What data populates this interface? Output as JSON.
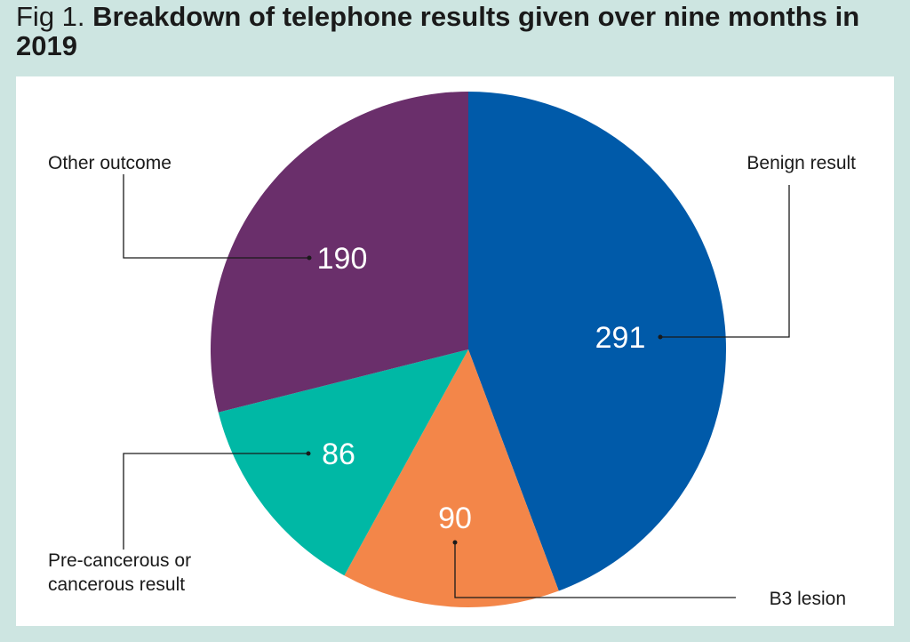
{
  "figure": {
    "label": "Fig 1.",
    "title": "Breakdown of telephone results given over nine months in 2019"
  },
  "colors": {
    "background": "#cde5e1",
    "panel": "#ffffff",
    "leader_line": "#1a1a1a"
  },
  "chart_data": {
    "type": "pie",
    "title": "Breakdown of telephone results given over nine months in 2019",
    "start_angle_deg": 0,
    "direction": "clockwise",
    "slices": [
      {
        "label": "Benign result",
        "value": 291,
        "color": "#005aa9"
      },
      {
        "label": "B3 lesion",
        "value": 90,
        "color": "#f38649"
      },
      {
        "label": "Pre-cancerous or cancerous result",
        "value": 86,
        "color": "#00b8a5"
      },
      {
        "label": "Other outcome",
        "value": 190,
        "color": "#6a2f6b"
      }
    ]
  },
  "labels": {
    "benign": "Benign result",
    "b3": "B3 lesion",
    "precancer_line1": "Pre-cancerous or",
    "precancer_line2": "cancerous result",
    "other": "Other outcome"
  }
}
